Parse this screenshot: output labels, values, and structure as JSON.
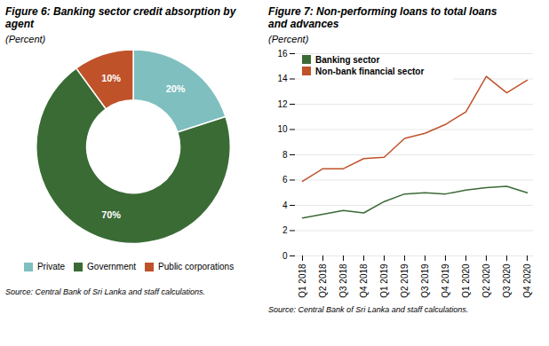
{
  "chart_data": [
    {
      "type": "donut",
      "title": "Figure 6: Banking sector credit absorption by\nagent",
      "subtitle": "(Percent)",
      "categories": [
        "Private",
        "Government",
        "Public corporations"
      ],
      "values": [
        20,
        70,
        10
      ],
      "value_labels": [
        "20%",
        "70%",
        "10%"
      ],
      "colors": [
        "#7fbfbf",
        "#3a6b35",
        "#c0522a"
      ],
      "data_labels": true,
      "legend": "bottom",
      "annotations": [
        "Source: Central Bank of Sri Lanka and staff calculations."
      ]
    },
    {
      "type": "line",
      "title": "Figure 7: Non-performing loans to total loans\nand advances",
      "subtitle": "(Percent)",
      "categories": [
        "Q1 2018",
        "Q2 2018",
        "Q3 2018",
        "Q4 2018",
        "Q1 2019",
        "Q2 2019",
        "Q3 2019",
        "Q4 2019",
        "Q1 2020",
        "Q2 2020",
        "Q3 2020",
        "Q4 2020"
      ],
      "series": [
        {
          "name": "Banking sector",
          "color": "#3a6b35",
          "values": [
            3.0,
            3.3,
            3.6,
            3.4,
            4.3,
            4.9,
            5.0,
            4.9,
            5.2,
            5.4,
            5.5,
            5.0
          ]
        },
        {
          "name": "Non-bank financial sector",
          "color": "#c0522a",
          "values": [
            5.9,
            6.9,
            6.9,
            7.7,
            7.8,
            9.3,
            9.7,
            10.4,
            11.4,
            14.2,
            12.9,
            13.9
          ]
        }
      ],
      "ylim": [
        0,
        16
      ],
      "yticks": [
        0,
        2,
        4,
        6,
        8,
        10,
        12,
        14,
        16
      ],
      "grid": true,
      "legend": "upper left",
      "annotations": [
        "Source: Central Bank of Sri Lanka and staff calculations."
      ]
    }
  ]
}
